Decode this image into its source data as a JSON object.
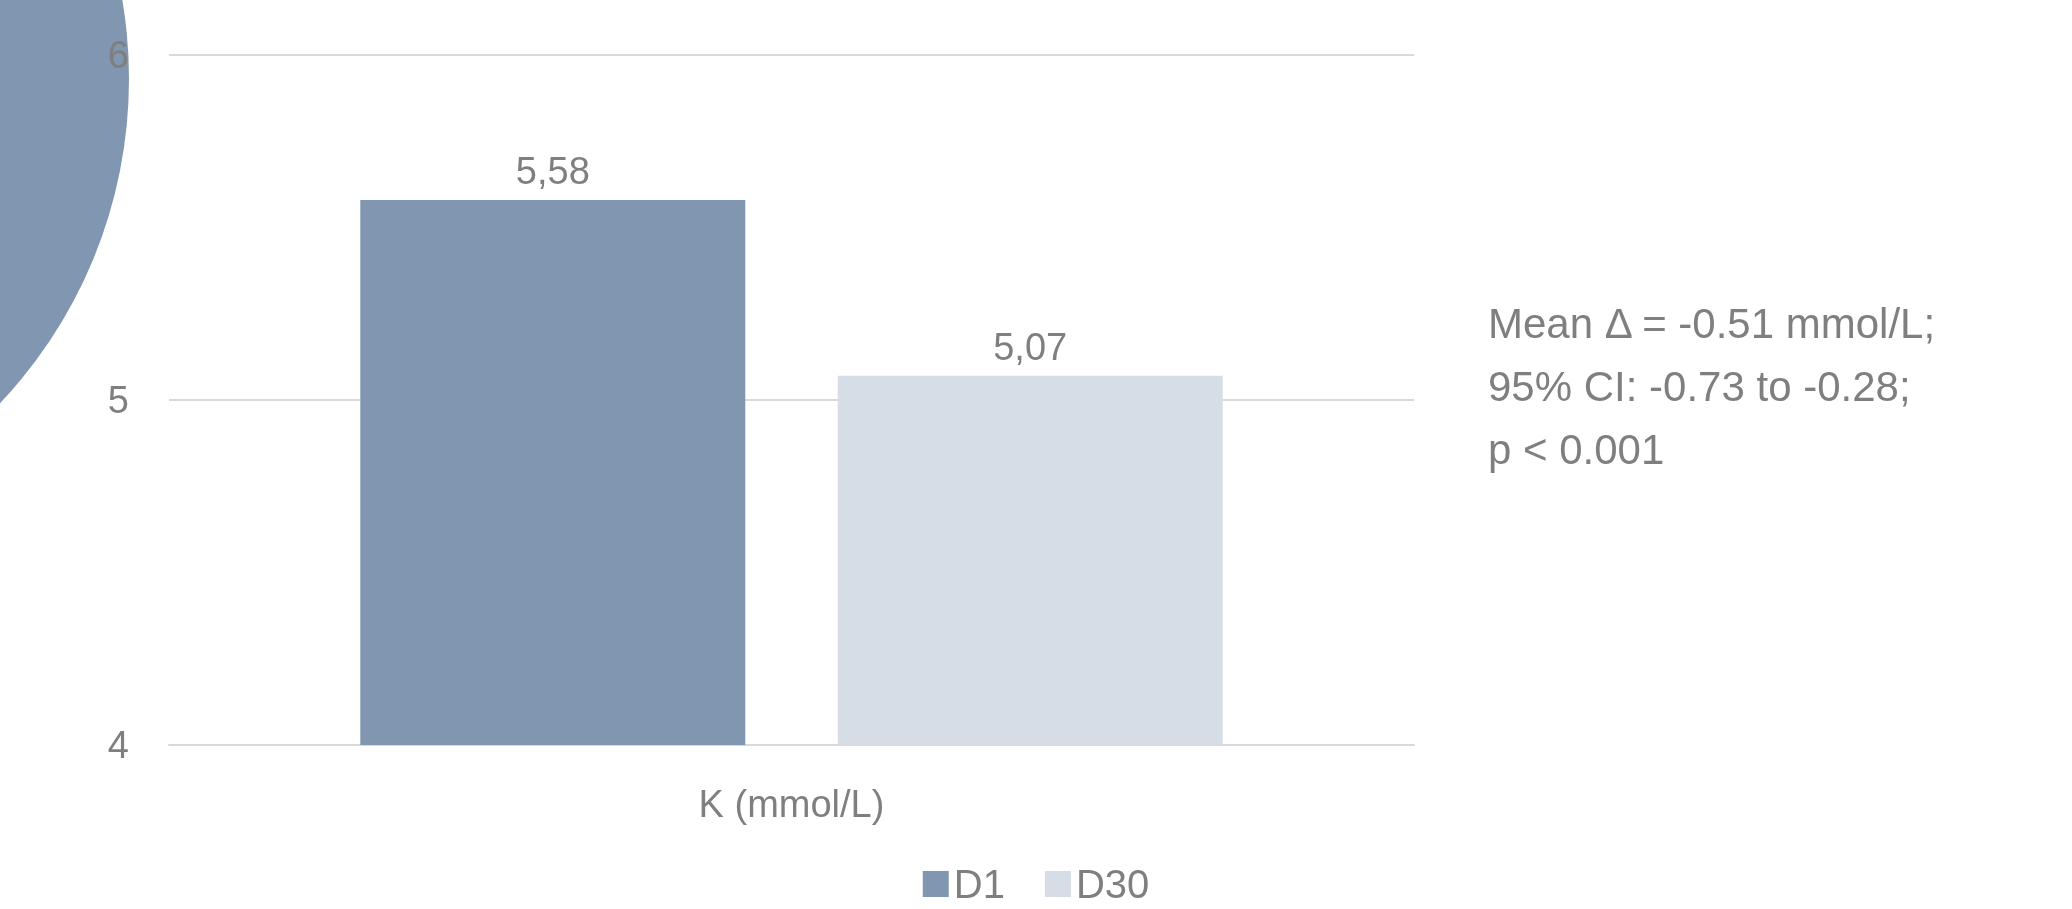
{
  "chart_data": {
    "type": "bar",
    "categories": [
      "K (mmol/L)"
    ],
    "series": [
      {
        "name": "D1",
        "color": "#8196b0",
        "values": [
          5.58
        ],
        "value_labels": [
          "5,58"
        ]
      },
      {
        "name": "D30",
        "color": "#d6dde7",
        "values": [
          5.07
        ],
        "value_labels": [
          "5,07"
        ]
      }
    ],
    "ylim": [
      4,
      6
    ],
    "yticks": [
      4,
      5,
      6
    ],
    "grid": "y",
    "legend": "bottom",
    "annotations": [
      "Mean Δ = -0.51 mmol/L;",
      "95% CI: -0.73 to -0.28;",
      "p < 0.001"
    ]
  }
}
